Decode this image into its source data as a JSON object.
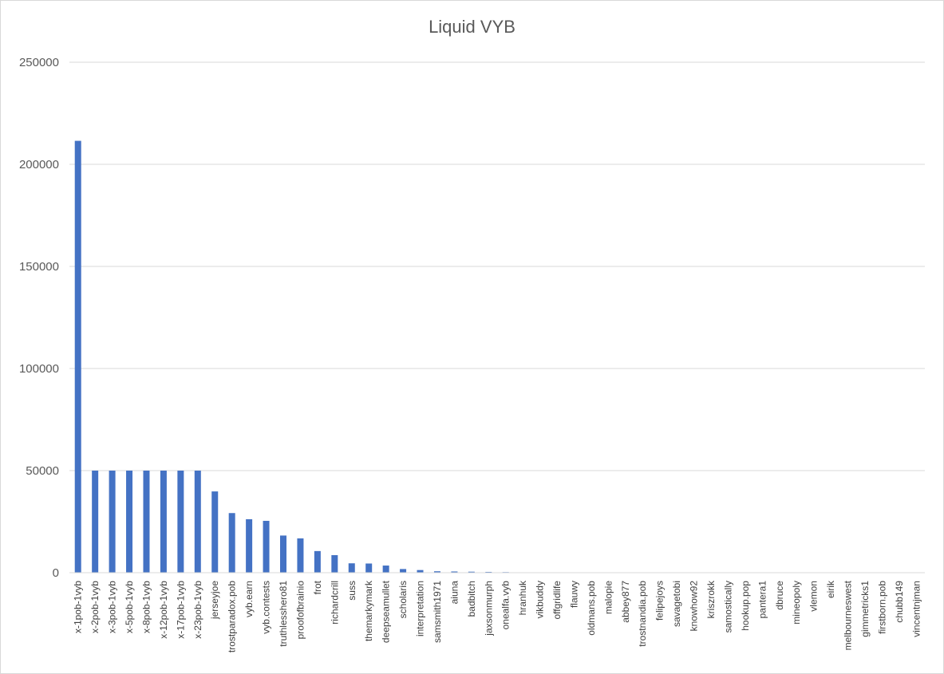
{
  "chart_data": {
    "type": "bar",
    "title": "Liquid VYB",
    "xlabel": "",
    "ylabel": "",
    "ylim": [
      0,
      250000
    ],
    "yticks": [
      0,
      50000,
      100000,
      150000,
      200000,
      250000
    ],
    "ytick_labels": [
      "0",
      "50000",
      "100000",
      "150000",
      "200000",
      "250000"
    ],
    "grid": true,
    "legend": "none",
    "bar_color": "#4472c4",
    "categories": [
      "x-1pob-1vyb",
      "x-2pob-1vyb",
      "x-3pob-1vyb",
      "x-5pob-1vyb",
      "x-8pob-1vyb",
      "x-12pob-1vyb",
      "x-17pob-1vyb",
      "x-23pob-1vyb",
      "jerseyjoe",
      "trostparadox.pob",
      "vyb.earn",
      "vyb.contests",
      "truthlesshero81",
      "proofofbrainio",
      "frot",
      "richardcrill",
      "suss",
      "themarkymark",
      "deepseamullet",
      "scholaris",
      "interpretation",
      "samsmith1971",
      "aiuna",
      "badbitch",
      "jaxsonmurph",
      "onealfa.vyb",
      "hranhuk",
      "vikbuddy",
      "offgridlife",
      "flauwy",
      "oldmans.pob",
      "malopie",
      "abbey877",
      "trostnandia.pob",
      "felipejoys",
      "savagetobi",
      "knowhow92",
      "kriszrokk",
      "samostically",
      "hookup.pop",
      "pantera1",
      "dbruce",
      "mineopoly",
      "vlemon",
      "eirik",
      "melbourneswest",
      "gimmetricks1",
      "firstborn.pob",
      "chubb149",
      "vincentnjman"
    ],
    "values": [
      211500,
      50000,
      50000,
      50000,
      50000,
      50000,
      50000,
      50000,
      39800,
      29200,
      26200,
      25400,
      18200,
      16800,
      10600,
      8600,
      4600,
      4500,
      3500,
      1800,
      1300,
      700,
      600,
      500,
      400,
      300,
      100,
      80,
      60,
      50,
      40,
      30,
      30,
      30,
      20,
      20,
      20,
      20,
      20,
      20,
      10,
      10,
      10,
      10,
      10,
      10,
      10,
      10,
      10,
      10
    ]
  }
}
